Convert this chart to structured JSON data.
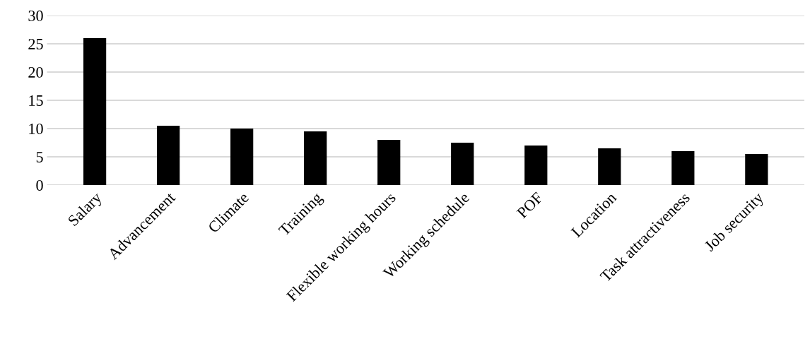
{
  "chart_data": {
    "type": "bar",
    "categories": [
      "Salary",
      "Advancement",
      "Climate",
      "Training",
      "Flexible working hours",
      "Working schedule",
      "POF",
      "Location",
      "Task attractiveness",
      "Job security"
    ],
    "values": [
      26,
      10.5,
      10,
      9.5,
      8,
      7.5,
      7,
      6.5,
      6,
      5.5
    ],
    "color": "#000000",
    "ylim": [
      0,
      30
    ],
    "yticks": [
      0,
      5,
      10,
      15,
      20,
      25,
      30
    ],
    "grid": "y",
    "legend": false
  }
}
